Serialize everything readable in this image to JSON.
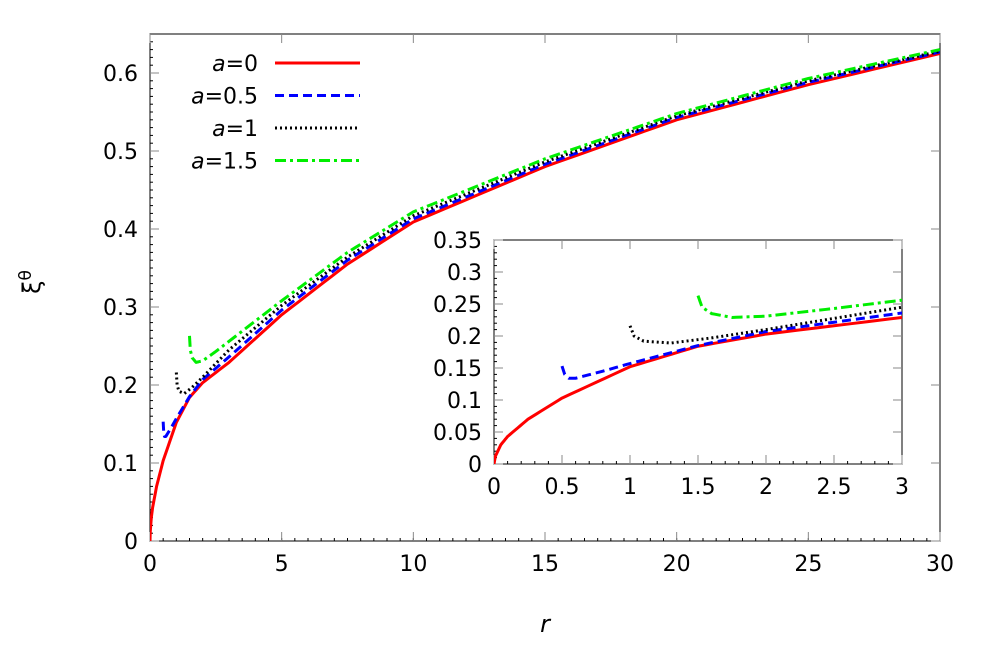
{
  "chart_data": [
    {
      "type": "line",
      "xlabel": "r",
      "ylabel": "ξθ",
      "ylabel_main": "ξ",
      "ylabel_sup": "θ",
      "xlim": [
        0,
        30
      ],
      "ylim": [
        0,
        0.65
      ],
      "xticks": [
        0,
        5,
        10,
        15,
        20,
        25,
        30
      ],
      "yticks": [
        0,
        0.1,
        0.2,
        0.3,
        0.4,
        0.5,
        0.6
      ],
      "legend_position": "top-left",
      "grid": false,
      "series": [
        {
          "name": "a=0",
          "color": "#ff0000",
          "style": "solid",
          "x": [
            0,
            0.01,
            0.05,
            0.1,
            0.25,
            0.5,
            1,
            1.5,
            2,
            3,
            5,
            7.5,
            10,
            15,
            20,
            25,
            30
          ],
          "y": [
            0,
            0.012,
            0.03,
            0.043,
            0.07,
            0.103,
            0.152,
            0.184,
            0.203,
            0.229,
            0.29,
            0.355,
            0.409,
            0.48,
            0.54,
            0.585,
            0.625
          ]
        },
        {
          "name": "a=0.5",
          "color": "#0000ff",
          "style": "dashed",
          "x": [
            0.5,
            0.52,
            0.55,
            0.6,
            0.8,
            1,
            1.5,
            2,
            3,
            5,
            7.5,
            10,
            15,
            20,
            25,
            30
          ],
          "y": [
            0.153,
            0.14,
            0.134,
            0.134,
            0.145,
            0.157,
            0.185,
            0.207,
            0.236,
            0.296,
            0.36,
            0.413,
            0.483,
            0.543,
            0.588,
            0.627
          ]
        },
        {
          "name": "a=1",
          "color": "#000000",
          "style": "dotted",
          "x": [
            1,
            1.03,
            1.1,
            1.3,
            1.6,
            2,
            3,
            5,
            7.5,
            10,
            15,
            20,
            25,
            30
          ],
          "y": [
            0.216,
            0.2,
            0.192,
            0.189,
            0.197,
            0.21,
            0.245,
            0.302,
            0.364,
            0.417,
            0.486,
            0.545,
            0.59,
            0.628
          ]
        },
        {
          "name": "a=1.5",
          "color": "#00ee00",
          "style": "dash-dot",
          "x": [
            1.5,
            1.53,
            1.6,
            1.75,
            2,
            2.5,
            3,
            5,
            7.5,
            10,
            15,
            20,
            25,
            30
          ],
          "y": [
            0.263,
            0.245,
            0.235,
            0.229,
            0.231,
            0.243,
            0.256,
            0.308,
            0.37,
            0.422,
            0.49,
            0.548,
            0.593,
            0.63
          ]
        }
      ]
    },
    {
      "type": "line",
      "role": "inset",
      "xlim": [
        0,
        3
      ],
      "ylim": [
        0,
        0.35
      ],
      "xticks": [
        0,
        0.5,
        1,
        1.5,
        2,
        2.5,
        3
      ],
      "xtick_labels": [
        "0",
        "0.5",
        "1",
        "1.5",
        "2",
        "2.5",
        "3"
      ],
      "yticks": [
        0,
        0.05,
        0.1,
        0.15,
        0.2,
        0.25,
        0.3,
        0.35
      ],
      "ytick_labels": [
        "0",
        "0.05",
        "0.1",
        "0.15",
        "0.2",
        "0.25",
        "0.3",
        "0.35"
      ],
      "series_ref": "same as main plot"
    }
  ]
}
